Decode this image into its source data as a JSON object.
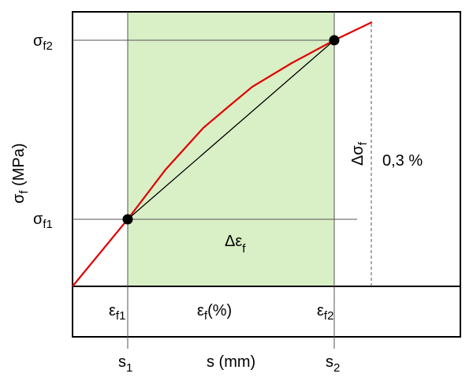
{
  "labels": {
    "sigma_f2": {
      "base": "σ",
      "sub": "f2"
    },
    "sigma_f1": {
      "base": "σ",
      "sub": "f1"
    },
    "y_axis": {
      "base": "σ",
      "sub": "f",
      "tail": " (MPa)"
    },
    "delta_sigma": {
      "base": "Δσ",
      "sub": "f"
    },
    "percent": "0,3 %",
    "delta_eps": {
      "base": "Δε",
      "sub": "f"
    },
    "eps_f1": {
      "base": "ε",
      "sub": "f1"
    },
    "eps_axis": {
      "base": "ε",
      "sub": "f",
      "tail": "(%)"
    },
    "eps_f2": {
      "base": "ε",
      "sub": "f2"
    },
    "s1": {
      "base": "s",
      "sub": "1"
    },
    "s_axis": "s (mm)",
    "s2": {
      "base": "s",
      "sub": "2"
    }
  }
}
